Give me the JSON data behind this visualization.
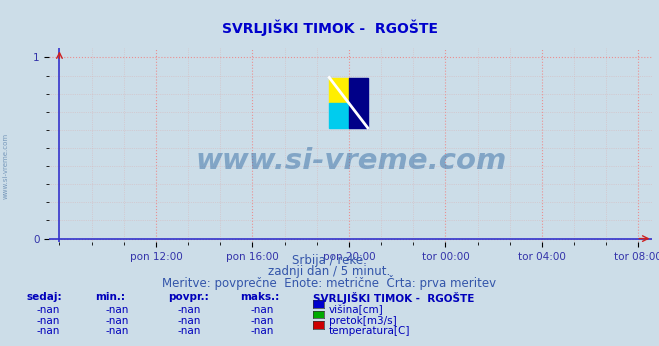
{
  "title": "SVRLJIŠKI TIMOK -  RGOŠTE",
  "title_color": "#0000cc",
  "bg_color": "#ccdde8",
  "plot_bg_color": "#ccdde8",
  "grid_color": "#ee8888",
  "grid_color2": "#ddaaaa",
  "axis_color": "#3333cc",
  "tick_color": "#3333aa",
  "yticks": [
    0,
    1
  ],
  "ylim": [
    -0.02,
    1.05
  ],
  "xlim": [
    -5,
    295
  ],
  "xtick_labels": [
    "pon 12:00",
    "pon 16:00",
    "pon 20:00",
    "tor 00:00",
    "tor 04:00",
    "tor 08:00"
  ],
  "xtick_positions": [
    48,
    96,
    144,
    192,
    240,
    288
  ],
  "watermark_text": "www.si-vreme.com",
  "watermark_color": "#4477aa",
  "watermark_alpha": 0.55,
  "subtitle1": "Srbija / reke.",
  "subtitle2": "zadnji dan / 5 minut.",
  "subtitle3": "Meritve: povprečne  Enote: metrične  Črta: prva meritev",
  "subtitle_color": "#3355aa",
  "subtitle_fontsize": 8.5,
  "legend_title": "SVRLJIŠKI TIMOK -  RGOŠTE",
  "legend_title_color": "#0000bb",
  "legend_items": [
    {
      "label": "višina[cm]",
      "color": "#0000cc"
    },
    {
      "label": "pretok[m3/s]",
      "color": "#00aa00"
    },
    {
      "label": "temperatura[C]",
      "color": "#cc0000"
    }
  ],
  "table_headers": [
    "sedaj:",
    "min.:",
    "povpr.:",
    "maks.:"
  ],
  "table_values": [
    "-nan",
    "-nan",
    "-nan",
    "-nan"
  ],
  "table_color": "#0000bb",
  "left_label": "www.si-vreme.com",
  "left_label_color": "#7799bb"
}
